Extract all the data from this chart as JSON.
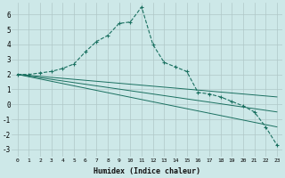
{
  "xlabel": "Humidex (Indice chaleur)",
  "background_color": "#cde8e8",
  "grid_color": "#b0c8c8",
  "line_color": "#1a7060",
  "xlim": [
    -0.5,
    23.5
  ],
  "ylim": [
    -3.5,
    6.8
  ],
  "xticks": [
    0,
    1,
    2,
    3,
    4,
    5,
    6,
    7,
    8,
    9,
    10,
    11,
    12,
    13,
    14,
    15,
    16,
    17,
    18,
    19,
    20,
    21,
    22,
    23
  ],
  "yticks": [
    -3,
    -2,
    -1,
    0,
    1,
    2,
    3,
    4,
    5,
    6
  ],
  "series": [
    {
      "x": [
        0,
        1,
        2,
        3,
        4,
        5,
        6,
        7,
        8,
        9,
        10,
        11,
        12,
        13,
        14,
        15,
        16,
        17,
        18,
        19,
        20,
        21,
        22,
        23
      ],
      "y": [
        2.0,
        2.0,
        2.1,
        2.2,
        2.4,
        2.7,
        3.5,
        4.2,
        4.6,
        5.4,
        5.5,
        6.5,
        4.0,
        2.8,
        2.5,
        2.2,
        0.8,
        0.7,
        0.5,
        0.2,
        -0.1,
        -0.5,
        -1.5,
        -2.7
      ],
      "marker": true,
      "linestyle": "--"
    },
    {
      "x": [
        0,
        23
      ],
      "y": [
        2.0,
        0.5
      ],
      "marker": false,
      "linestyle": "-"
    },
    {
      "x": [
        0,
        23
      ],
      "y": [
        2.0,
        -0.5
      ],
      "marker": false,
      "linestyle": "-"
    },
    {
      "x": [
        0,
        23
      ],
      "y": [
        2.0,
        -1.5
      ],
      "marker": false,
      "linestyle": "-"
    }
  ]
}
